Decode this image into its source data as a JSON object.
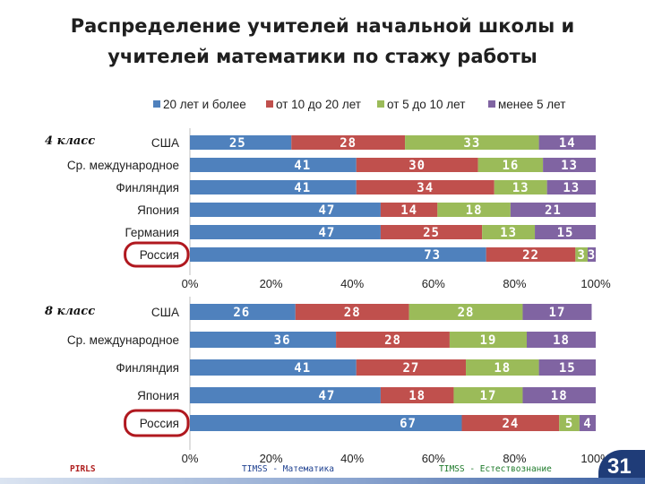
{
  "title_lines": [
    "Распределение учителей начальной школы и",
    "учителей математики по стажу работы"
  ],
  "legend": [
    "20 лет и более",
    "от 10 до 20 лет",
    "от 5 до 10 лет",
    "менее 5 лет"
  ],
  "colors": [
    "#4f81bd",
    "#c0504d",
    "#9bbb59",
    "#8064a2"
  ],
  "highlight_color": "#b0181f",
  "footer": {
    "left": "PIRLS",
    "mid": "TIMSS - Математика",
    "right": "TIMSS - Естествознание",
    "page": "31"
  },
  "chart_data": [
    {
      "type": "bar",
      "stacked": "percent",
      "orientation": "horizontal",
      "panel_label": "4 класс",
      "categories": [
        "США",
        "Ср. международное",
        "Финляндия",
        "Япония",
        "Германия",
        "Россия"
      ],
      "highlighted_category": "Россия",
      "series": [
        {
          "name": "20 лет и более",
          "values": [
            25,
            41,
            41,
            47,
            47,
            73
          ]
        },
        {
          "name": "от 10 до 20 лет",
          "values": [
            28,
            30,
            34,
            14,
            25,
            22
          ]
        },
        {
          "name": "от 5 до 10 лет",
          "values": [
            33,
            16,
            13,
            18,
            13,
            3
          ]
        },
        {
          "name": "менее 5 лет",
          "values": [
            14,
            13,
            13,
            21,
            15,
            3
          ]
        }
      ],
      "xlim": [
        0,
        100
      ],
      "xticks": [
        "0%",
        "20%",
        "40%",
        "60%",
        "80%",
        "100%"
      ],
      "legend_position": "top"
    },
    {
      "type": "bar",
      "stacked": "percent",
      "orientation": "horizontal",
      "panel_label": "8 класс",
      "categories": [
        "США",
        "Ср. международное",
        "Финляндия",
        "Япония",
        "Россия"
      ],
      "highlighted_category": "Россия",
      "series": [
        {
          "name": "20 лет и более",
          "values": [
            26,
            36,
            41,
            47,
            67
          ]
        },
        {
          "name": "от 10 до 20 лет",
          "values": [
            28,
            28,
            27,
            18,
            24
          ]
        },
        {
          "name": "от 5 до 10 лет",
          "values": [
            28,
            19,
            18,
            17,
            5
          ]
        },
        {
          "name": "менее 5 лет",
          "values": [
            17,
            18,
            15,
            18,
            4
          ]
        }
      ],
      "xlim": [
        0,
        100
      ],
      "xticks": [
        "0%",
        "20%",
        "40%",
        "60%",
        "80%",
        "100%"
      ]
    }
  ]
}
